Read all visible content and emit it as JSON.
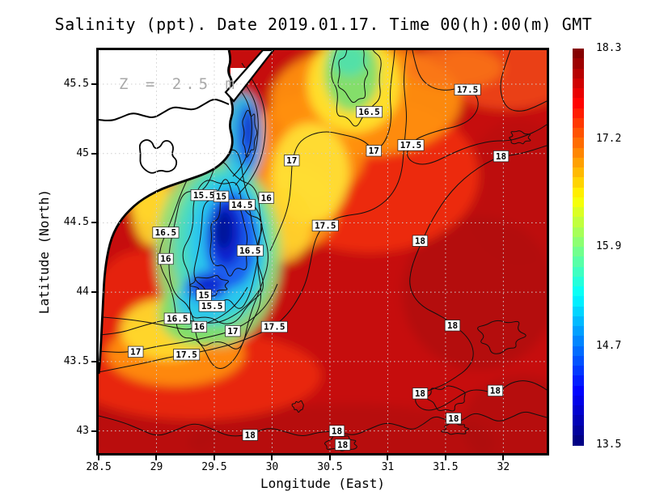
{
  "chart_data": {
    "type": "contour_heatmap_map",
    "title": "Salinity (ppt). Date 2019.01.17. Time 00(h):00(m) GMT",
    "depth_annotation": "Z = 2.5 m",
    "xlabel": "Longitude (East)",
    "ylabel": "Latitude (North)",
    "x_range": [
      28.5,
      32.375
    ],
    "y_range": [
      42.84,
      45.745
    ],
    "x_ticks": [
      {
        "value": 28.5,
        "label": "28.5"
      },
      {
        "value": 29,
        "label": "29"
      },
      {
        "value": 29.5,
        "label": "29.5"
      },
      {
        "value": 30,
        "label": "30"
      },
      {
        "value": 30.5,
        "label": "30.5"
      },
      {
        "value": 31,
        "label": "31"
      },
      {
        "value": 31.5,
        "label": "31.5"
      },
      {
        "value": 32,
        "label": "32"
      }
    ],
    "y_ticks": [
      {
        "value": 43,
        "label": "43"
      },
      {
        "value": 43.5,
        "label": "43.5"
      },
      {
        "value": 44,
        "label": "44"
      },
      {
        "value": 44.5,
        "label": "44.5"
      },
      {
        "value": 45,
        "label": "45"
      },
      {
        "value": 45.5,
        "label": "45.5"
      }
    ],
    "grid": {
      "x_lines": [
        29,
        29.5,
        30,
        30.5,
        31,
        31.5,
        32
      ],
      "y_lines": [
        43,
        43.5,
        44,
        44.5,
        45,
        45.5
      ],
      "style": "dotted"
    },
    "colorbar": {
      "min": 13.5,
      "max": 18.3,
      "units": "ppt",
      "colormap": "jet",
      "segments": 40,
      "tick_labels": [
        {
          "value": 18.3,
          "label": "18.3"
        },
        {
          "value": 17.2,
          "label": "17.2"
        },
        {
          "value": 15.9,
          "label": "15.9"
        },
        {
          "value": 14.7,
          "label": "14.7"
        },
        {
          "value": 13.5,
          "label": "13.5"
        }
      ],
      "stops": [
        {
          "pos": 0,
          "color": "#000085"
        },
        {
          "pos": 0.125,
          "color": "#0000ff"
        },
        {
          "pos": 0.375,
          "color": "#00ffff"
        },
        {
          "pos": 0.625,
          "color": "#ffff00"
        },
        {
          "pos": 0.875,
          "color": "#ff0000"
        },
        {
          "pos": 1,
          "color": "#850000"
        }
      ]
    },
    "contour_levels": [
      14.5,
      15,
      15.5,
      16,
      16.5,
      17,
      17.5,
      18
    ],
    "contour_labels": [
      {
        "value": "17.5",
        "lon": 31.69,
        "lat": 45.46
      },
      {
        "value": "16.5",
        "lon": 30.84,
        "lat": 45.3
      },
      {
        "value": "17",
        "lon": 30.88,
        "lat": 45.02
      },
      {
        "value": "17.5",
        "lon": 31.2,
        "lat": 45.06
      },
      {
        "value": "18",
        "lon": 31.98,
        "lat": 44.98
      },
      {
        "value": "17",
        "lon": 30.17,
        "lat": 44.95
      },
      {
        "value": "15.5",
        "lon": 29.41,
        "lat": 44.7
      },
      {
        "value": "15",
        "lon": 29.56,
        "lat": 44.69
      },
      {
        "value": "14.5",
        "lon": 29.74,
        "lat": 44.63
      },
      {
        "value": "16",
        "lon": 29.95,
        "lat": 44.68
      },
      {
        "value": "16.5",
        "lon": 29.08,
        "lat": 44.43
      },
      {
        "value": "16.5",
        "lon": 29.81,
        "lat": 44.3
      },
      {
        "value": "16",
        "lon": 29.08,
        "lat": 44.24
      },
      {
        "value": "17.5",
        "lon": 30.46,
        "lat": 44.48
      },
      {
        "value": "18",
        "lon": 31.28,
        "lat": 44.37
      },
      {
        "value": "15",
        "lon": 29.41,
        "lat": 43.98
      },
      {
        "value": "15.5",
        "lon": 29.48,
        "lat": 43.9
      },
      {
        "value": "16.5",
        "lon": 29.18,
        "lat": 43.81
      },
      {
        "value": "16",
        "lon": 29.37,
        "lat": 43.75
      },
      {
        "value": "17",
        "lon": 29.66,
        "lat": 43.72
      },
      {
        "value": "17.5",
        "lon": 30.02,
        "lat": 43.75
      },
      {
        "value": "18",
        "lon": 31.56,
        "lat": 43.76
      },
      {
        "value": "17",
        "lon": 28.82,
        "lat": 43.57
      },
      {
        "value": "17.5",
        "lon": 29.26,
        "lat": 43.55
      },
      {
        "value": "18",
        "lon": 31.28,
        "lat": 43.27
      },
      {
        "value": "18",
        "lon": 31.93,
        "lat": 43.29
      },
      {
        "value": "18",
        "lon": 31.57,
        "lat": 43.09
      },
      {
        "value": "18",
        "lon": 30.56,
        "lat": 43.0
      },
      {
        "value": "18",
        "lon": 30.61,
        "lat": 42.9
      },
      {
        "value": "18",
        "lon": 29.81,
        "lat": 42.97
      }
    ],
    "features": {
      "low_salinity_plume": "Low-salinity coastal plume (< 14.5 ppt core) centred near 29.6E 44.5N along the western coast",
      "fresher_patch_north": "Fresher patch (~16 ppt) near 30.7E at the northern edge",
      "background": "High salinity (~18 ppt) over most of the open basin"
    }
  }
}
